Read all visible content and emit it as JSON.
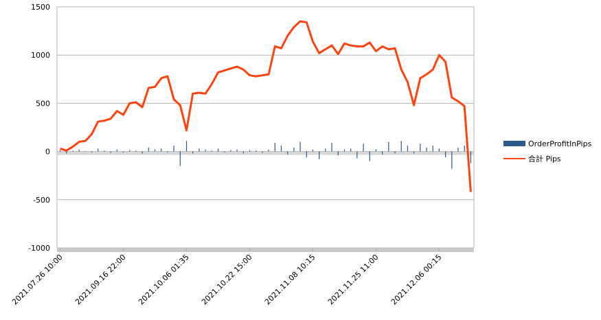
{
  "chart_data": {
    "type": "bar",
    "categories": [
      "2021.07.26 10:00",
      null,
      null,
      null,
      null,
      null,
      null,
      null,
      null,
      null,
      "2021.09.16 22:00",
      null,
      null,
      null,
      null,
      null,
      null,
      null,
      null,
      null,
      "2021.10.06 01:35",
      null,
      null,
      null,
      null,
      null,
      null,
      null,
      null,
      null,
      "2021.10.22 15:00",
      null,
      null,
      null,
      null,
      null,
      null,
      null,
      null,
      null,
      "2021.11.08 10:15",
      null,
      null,
      null,
      null,
      null,
      null,
      null,
      null,
      null,
      "2021.11.25 11:00",
      null,
      null,
      null,
      null,
      null,
      null,
      null,
      null,
      null,
      "2021.12.06 00:15",
      null,
      null,
      null,
      null,
      null
    ],
    "series": [
      {
        "name": "OrderProfitInPips",
        "type": "bar",
        "color": "#2a5a8c",
        "values": [
          15,
          -20,
          10,
          20,
          5,
          -10,
          30,
          10,
          -15,
          20,
          -10,
          15,
          10,
          -20,
          40,
          20,
          30,
          -10,
          60,
          -150,
          110,
          -20,
          30,
          20,
          10,
          30,
          -10,
          15,
          20,
          -20,
          15,
          10,
          -15,
          20,
          90,
          60,
          -30,
          40,
          100,
          -60,
          20,
          -80,
          30,
          90,
          -40,
          20,
          30,
          -70,
          80,
          -100,
          20,
          -30,
          100,
          -20,
          110,
          60,
          -20,
          80,
          40,
          60,
          30,
          -60,
          -180,
          40,
          60,
          -120
        ]
      },
      {
        "name": "合計 Pips",
        "type": "line",
        "color": "#ff420e",
        "values": [
          30,
          10,
          50,
          100,
          110,
          180,
          310,
          320,
          340,
          420,
          380,
          500,
          510,
          460,
          660,
          670,
          760,
          780,
          540,
          480,
          220,
          600,
          610,
          600,
          700,
          820,
          840,
          860,
          880,
          850,
          790,
          780,
          790,
          800,
          1090,
          1070,
          1200,
          1290,
          1350,
          1340,
          1140,
          1020,
          1060,
          1100,
          1010,
          1120,
          1100,
          1090,
          1090,
          1130,
          1040,
          1090,
          1060,
          1070,
          850,
          720,
          480,
          760,
          800,
          850,
          1000,
          930,
          560,
          520,
          470,
          -420
        ]
      }
    ],
    "ylim": [
      -1000,
      1500
    ],
    "yticks": [
      -1000,
      -500,
      0,
      500,
      1000,
      1500
    ],
    "grid": true
  }
}
